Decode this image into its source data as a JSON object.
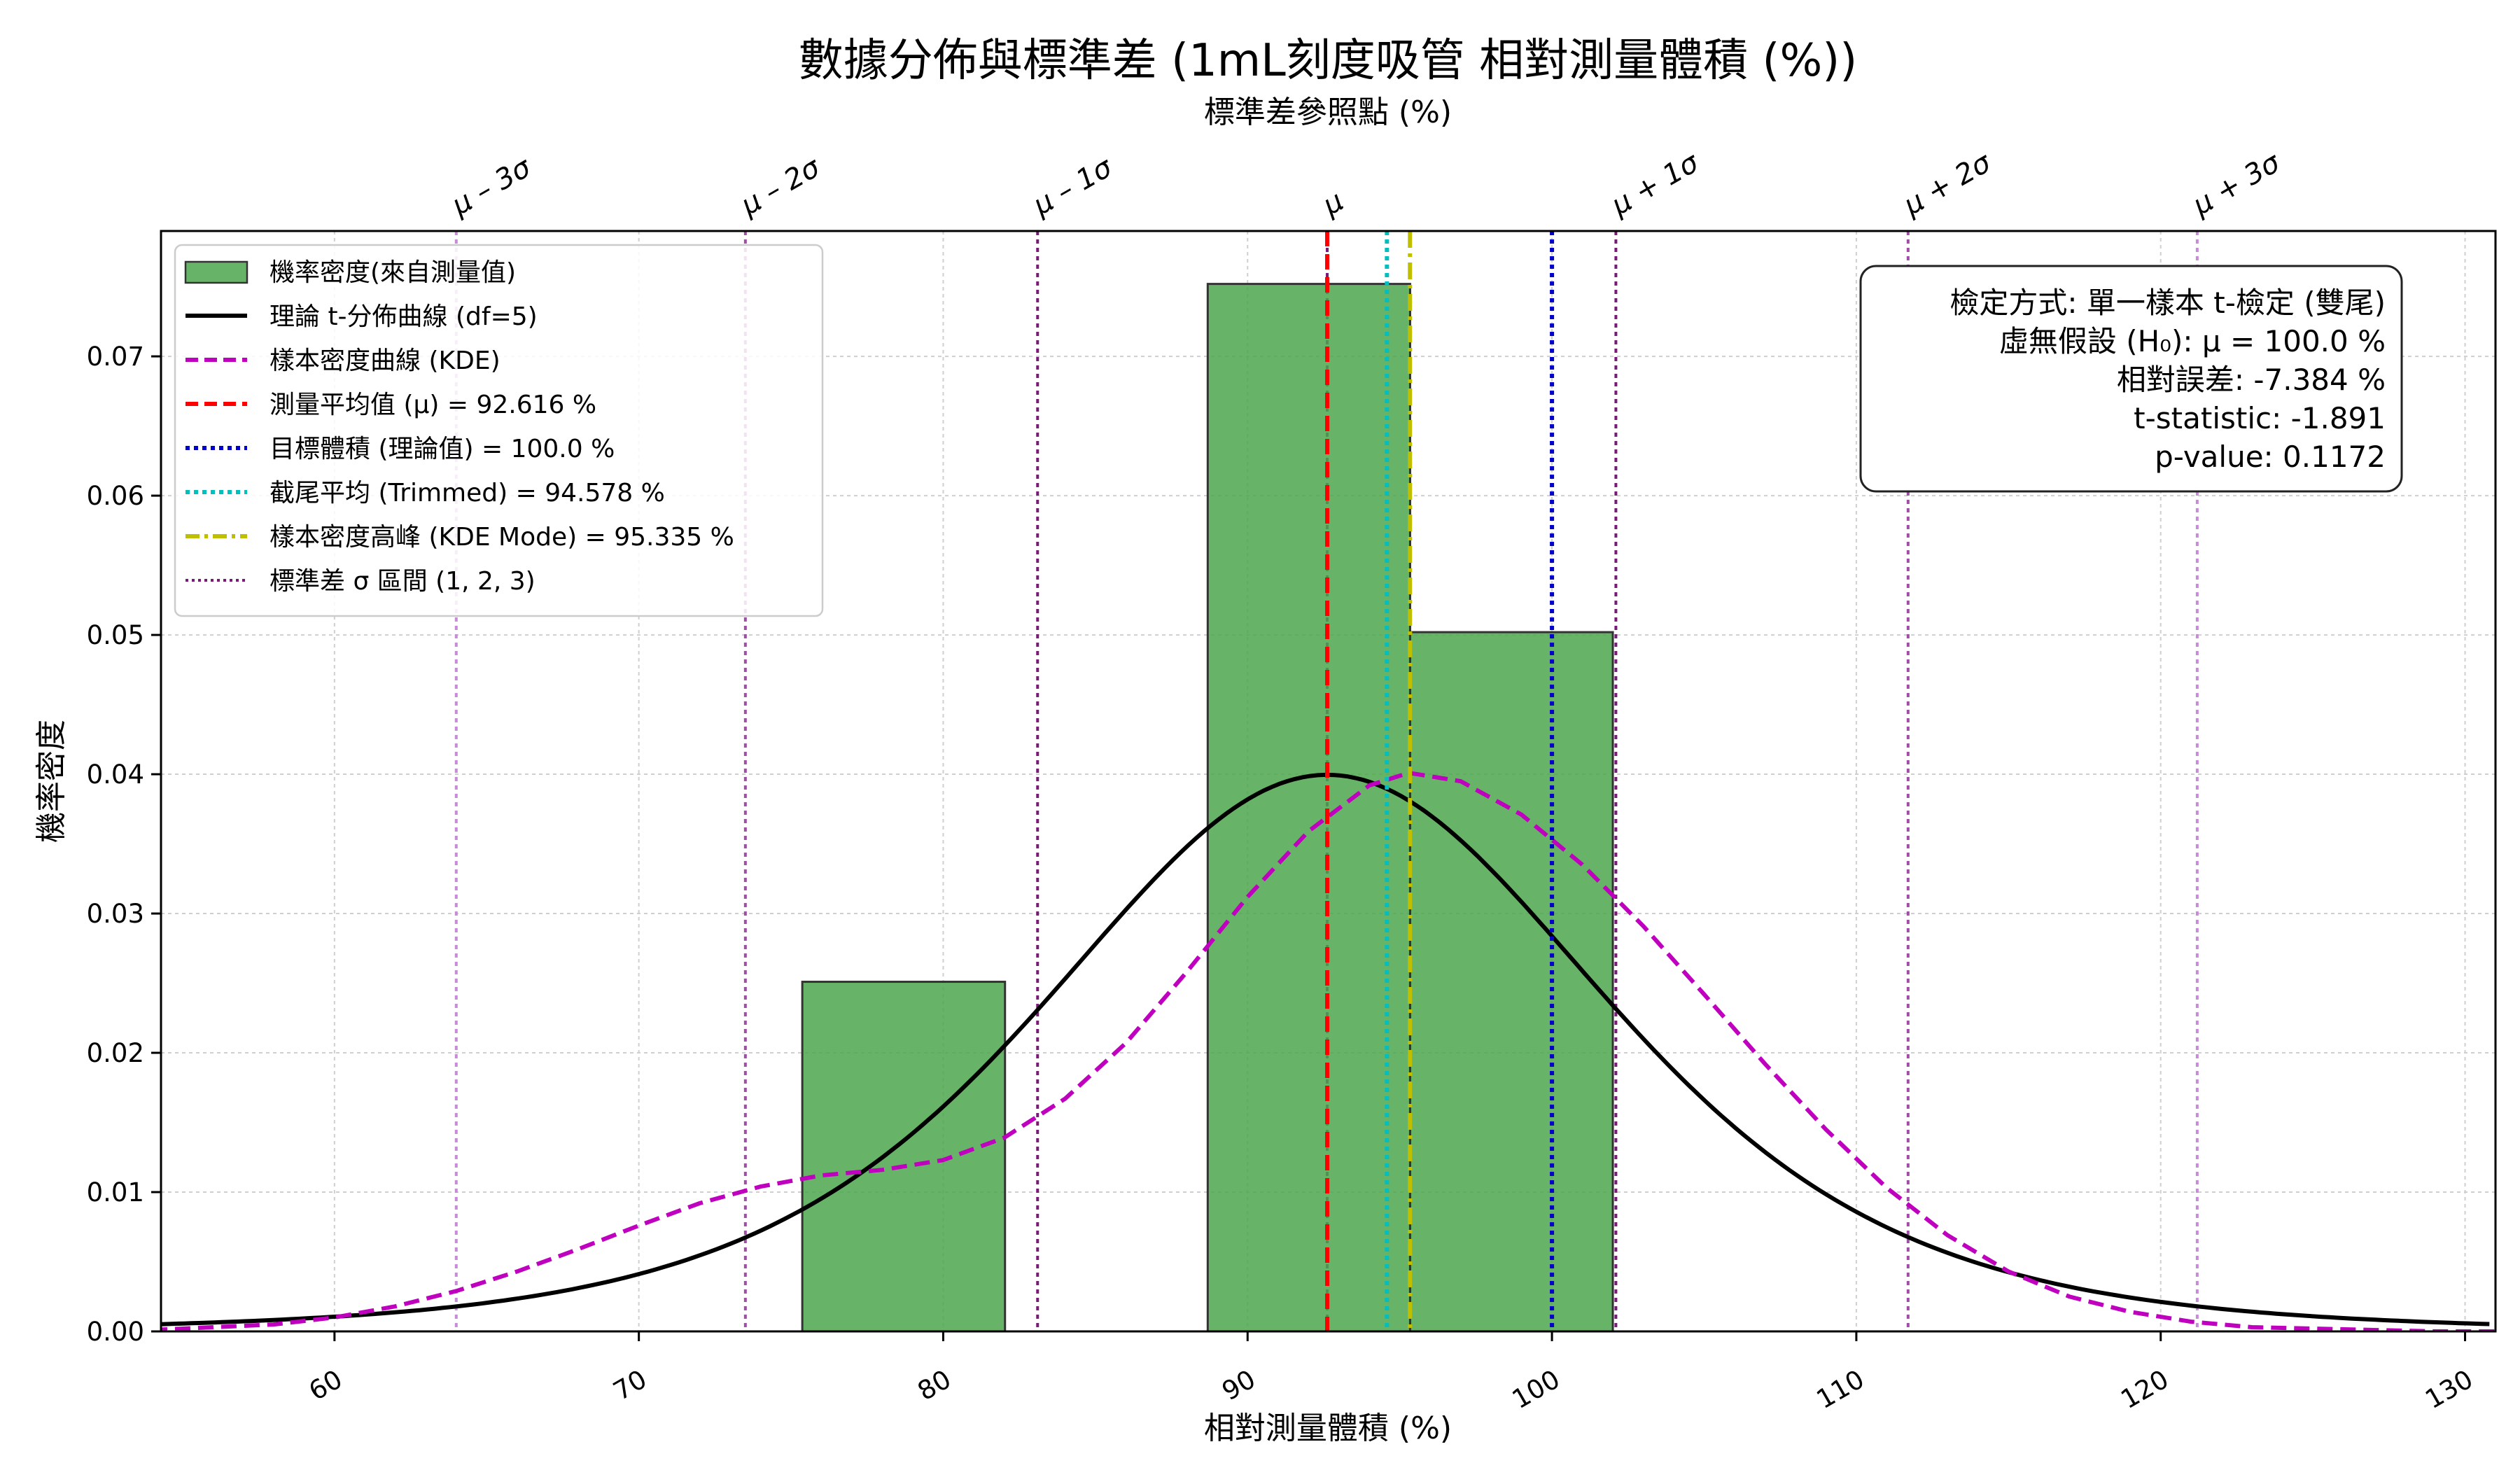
{
  "chart_data": {
    "type": "bar",
    "title": "數據分佈與標準差 (1mL刻度吸管 相對測量體積 (%))",
    "top_axis_label": "標準差參照點 (%)",
    "xlabel": "相對測量體積 (%)",
    "ylabel": "機率密度",
    "xlim": [
      54.3,
      131.0
    ],
    "ylim": [
      0,
      0.079
    ],
    "x_ticks": [
      60,
      70,
      80,
      90,
      100,
      110,
      120,
      130
    ],
    "y_ticks": [
      0.0,
      0.01,
      0.02,
      0.03,
      0.04,
      0.05,
      0.06,
      0.07
    ],
    "y_tick_labels": [
      "0.00",
      "0.01",
      "0.02",
      "0.03",
      "0.04",
      "0.05",
      "0.06",
      "0.07"
    ],
    "grid": true,
    "legend_position": "upper left",
    "histogram": {
      "name": "機率密度(來自測量值)",
      "color": "#4ca64c",
      "bins": [
        {
          "x0": 75.37,
          "x1": 82.03,
          "density": 0.0251
        },
        {
          "x0": 82.03,
          "x1": 88.69,
          "density": 0.0
        },
        {
          "x0": 88.69,
          "x1": 95.34,
          "density": 0.0752
        },
        {
          "x0": 95.34,
          "x1": 102.0,
          "density": 0.0502
        }
      ]
    },
    "t_curve": {
      "name": "理論 t-分佈曲線 (df=5)",
      "df": 5,
      "center": 92.616,
      "scale": 9.5,
      "color": "#000000"
    },
    "kde_curve": {
      "name": "樣本密度曲線 (KDE)",
      "color": "#bf00bf",
      "x": [
        54,
        58,
        60,
        62,
        64,
        66,
        68,
        70,
        72,
        74,
        76,
        78,
        80,
        82,
        84,
        86,
        88,
        90,
        92,
        94,
        95.3,
        97,
        99,
        101,
        103,
        105,
        107,
        109,
        111,
        113,
        115,
        117,
        119,
        121,
        123,
        125,
        127,
        129,
        131
      ],
      "y": [
        0.0001,
        0.0005,
        0.001,
        0.0018,
        0.0029,
        0.0043,
        0.0059,
        0.0076,
        0.0092,
        0.0104,
        0.0112,
        0.0116,
        0.0123,
        0.0139,
        0.0167,
        0.0207,
        0.0258,
        0.0312,
        0.0359,
        0.0392,
        0.0401,
        0.0395,
        0.0371,
        0.0335,
        0.0291,
        0.0242,
        0.0192,
        0.0145,
        0.0103,
        0.0069,
        0.0043,
        0.0025,
        0.0014,
        0.0007,
        0.0003,
        0.0002,
        0.0001,
        0.0,
        0.0
      ]
    },
    "vlines": [
      {
        "name": "測量平均值 (μ) = 92.616 %",
        "x": 92.616,
        "color": "#ff0000",
        "style": "dashed"
      },
      {
        "name": "目標體積 (理論值) = 100.0 %",
        "x": 100.0,
        "color": "#0000cc",
        "style": "dotted"
      },
      {
        "name": "截尾平均 (Trimmed) = 94.578 %",
        "x": 94.578,
        "color": "#00bfbf",
        "style": "dotted"
      },
      {
        "name": "樣本密度高峰 (KDE Mode) = 95.335 %",
        "x": 95.335,
        "color": "#bfbf00",
        "style": "dashdot"
      }
    ],
    "sigma_legend": "標準差 σ 區間 (1, 2, 3)",
    "sigma_lines": [
      {
        "label": "μ – 3σ",
        "x": 64.0,
        "color": "#c78cd6"
      },
      {
        "label": "μ – 2σ",
        "x": 73.5,
        "color": "#a04ca8"
      },
      {
        "label": "μ – 1σ",
        "x": 83.1,
        "color": "#7a1a78"
      },
      {
        "label": "μ",
        "x": 92.616,
        "color": "#7a1a78"
      },
      {
        "label": "μ + 1σ",
        "x": 102.1,
        "color": "#7a1a78"
      },
      {
        "label": "μ + 2σ",
        "x": 111.7,
        "color": "#a04ca8"
      },
      {
        "label": "μ + 3σ",
        "x": 121.2,
        "color": "#c78cd6"
      }
    ],
    "stats_box": [
      "檢定方式: 單一樣本 t-檢定 (雙尾)",
      "虛無假設 (H₀): μ = 100.0 %",
      "相對誤差: -7.384 %",
      "t-statistic: -1.891",
      "p-value: 0.1172"
    ]
  }
}
